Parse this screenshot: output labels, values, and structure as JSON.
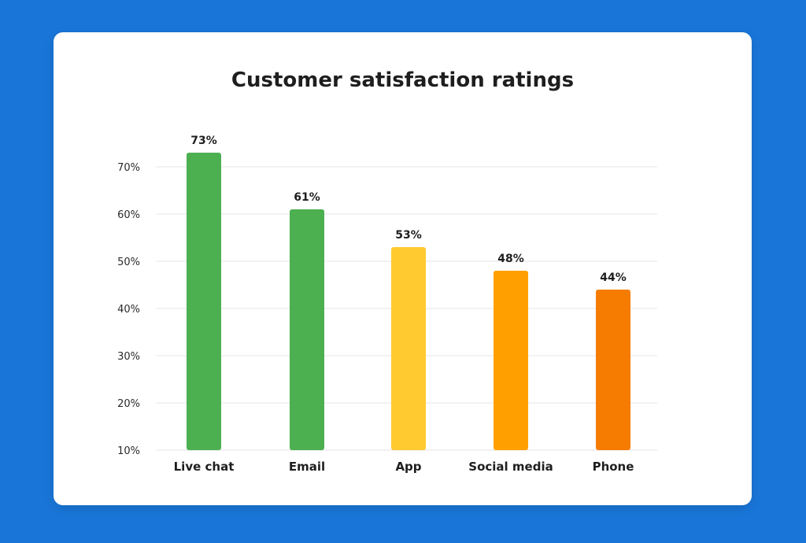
{
  "chart_data": {
    "type": "bar",
    "title": "Customer satisfaction ratings",
    "categories": [
      "Live chat",
      "Email",
      "App",
      "Social media",
      "Phone"
    ],
    "values": [
      73,
      61,
      53,
      48,
      44
    ],
    "value_labels": [
      "73%",
      "61%",
      "53%",
      "48%",
      "44%"
    ],
    "bar_colors": [
      "#4CAF50",
      "#4CAF50",
      "#FFC930",
      "#FFA000",
      "#F57C00"
    ],
    "ylim": [
      10,
      73
    ],
    "y_ticks": [
      10,
      20,
      30,
      40,
      50,
      60,
      70
    ],
    "y_tick_labels": [
      "10%",
      "20%",
      "30%",
      "40%",
      "50%",
      "60%",
      "70%"
    ],
    "grid": true,
    "legend": "none"
  },
  "colors": {
    "background": "#1976D8",
    "card": "#FFFFFF",
    "gridline": "#E6E6E6",
    "text": "#1E1E1E"
  }
}
